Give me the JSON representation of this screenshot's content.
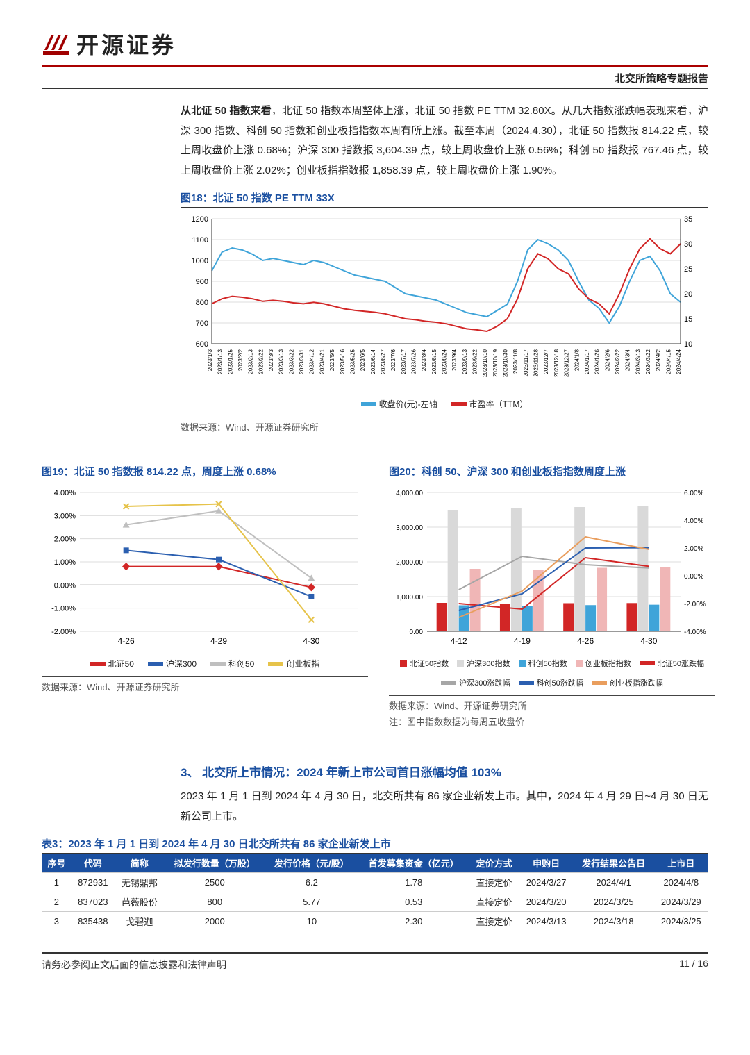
{
  "header": {
    "company": "开源证券",
    "report_title": "北交所策略专题报告"
  },
  "para1": {
    "lead": "从北证 50 指数来看",
    "text_a": "，北证 50 指数本周整体上涨，北证 50 指数 PE TTM 32.80X。",
    "uline": "从几大指数涨跌幅表现来看，沪深 300 指数、科创 50 指数和创业板指指数本周有所上涨。",
    "text_b": "截至本周（2024.4.30），北证 50 指数报 814.22 点，较上周收盘价上涨 0.68%；沪深 300 指数报 3,604.39 点，较上周收盘价上涨 0.56%；科创 50 指数报 767.46 点，较上周收盘价上涨 2.02%；创业板指指数报 1,858.39 点，较上周收盘价上涨 1.90%。"
  },
  "fig18": {
    "title": "图18：北证 50 指数 PE TTM 33X",
    "type": "line_dual_axis",
    "series": [
      {
        "name": "收盘价(元)-左轴",
        "color": "#3fa4d9",
        "axis": "left"
      },
      {
        "name": "市盈率（TTM）",
        "color": "#d22626",
        "axis": "right"
      }
    ],
    "y_left": {
      "min": 600,
      "max": 1200,
      "step": 100
    },
    "y_right": {
      "min": 10,
      "max": 35,
      "step": 5
    },
    "x_labels": [
      "2023/1/3",
      "2023/1/13",
      "2023/1/25",
      "2023/2/2",
      "2023/2/13",
      "2023/2/22",
      "2023/3/3",
      "2023/3/13",
      "2023/3/22",
      "2023/3/31",
      "2023/4/12",
      "2023/4/21",
      "2023/5/5",
      "2023/5/16",
      "2023/5/25",
      "2023/6/5",
      "2023/6/14",
      "2023/6/27",
      "2023/7/6",
      "2023/7/17",
      "2023/7/26",
      "2023/8/4",
      "2023/8/15",
      "2023/8/24",
      "2023/9/4",
      "2023/9/13",
      "2023/9/22",
      "2023/10/10",
      "2023/10/19",
      "2023/10/30",
      "2023/11/8",
      "2023/11/17",
      "2023/11/28",
      "2023/12/7",
      "2023/12/18",
      "2023/12/27",
      "2024/1/8",
      "2024/1/17",
      "2024/1/26",
      "2024/2/6",
      "2024/2/22",
      "2024/3/4",
      "2024/3/13",
      "2024/3/22",
      "2024/4/2",
      "2024/4/15",
      "2024/4/24"
    ],
    "price": [
      950,
      1040,
      1060,
      1050,
      1030,
      1000,
      1010,
      1000,
      990,
      980,
      1000,
      990,
      970,
      950,
      930,
      920,
      910,
      900,
      870,
      840,
      830,
      820,
      810,
      790,
      770,
      750,
      740,
      730,
      760,
      790,
      900,
      1050,
      1100,
      1080,
      1050,
      1000,
      900,
      810,
      770,
      700,
      780,
      900,
      1000,
      1020,
      950,
      840,
      800
    ],
    "pe": [
      18,
      19,
      19.5,
      19.3,
      19,
      18.5,
      18.7,
      18.5,
      18.2,
      18,
      18.3,
      18,
      17.5,
      17,
      16.7,
      16.5,
      16.3,
      16,
      15.5,
      15,
      14.8,
      14.5,
      14.3,
      14,
      13.5,
      13,
      12.8,
      12.5,
      13.5,
      15,
      19,
      25,
      28,
      27,
      25,
      24,
      21,
      19,
      18,
      16,
      20,
      25,
      29,
      31,
      29,
      28,
      30
    ],
    "source": "数据来源：Wind、开源证券研究所"
  },
  "fig19": {
    "title": "图19：北证 50 指数报 814.22 点，周度上涨 0.68%",
    "type": "line",
    "x": [
      "4-26",
      "4-29",
      "4-30"
    ],
    "series": [
      {
        "name": "北证50",
        "color": "#d22626",
        "marker": "diamond",
        "vals": [
          0.8,
          0.8,
          -0.1
        ]
      },
      {
        "name": "沪深300",
        "color": "#2b5fb0",
        "marker": "square",
        "vals": [
          1.5,
          1.1,
          -0.5
        ]
      },
      {
        "name": "科创50",
        "color": "#bfbfbf",
        "marker": "triangle",
        "vals": [
          2.6,
          3.2,
          0.3
        ]
      },
      {
        "name": "创业板指",
        "color": "#e6c34a",
        "marker": "x",
        "vals": [
          3.4,
          3.5,
          -1.5
        ]
      }
    ],
    "y": {
      "min": -2.0,
      "max": 4.0,
      "step": 1.0,
      "fmt": "percent"
    },
    "source": "数据来源：Wind、开源证券研究所"
  },
  "fig20": {
    "title": "图20：科创 50、沪深 300 和创业板指指数周度上涨",
    "type": "bar_line_dual",
    "x": [
      "4-12",
      "4-19",
      "4-26",
      "4-30"
    ],
    "bars": [
      {
        "name": "北证50指数",
        "color": "#d22626",
        "vals": [
          820,
          800,
          810,
          814
        ]
      },
      {
        "name": "沪深300指数",
        "color": "#d9d9d9",
        "vals": [
          3500,
          3550,
          3580,
          3604
        ]
      },
      {
        "name": "科创50指数",
        "color": "#3fa4d9",
        "vals": [
          750,
          740,
          755,
          767
        ]
      },
      {
        "name": "创业板指指数",
        "color": "#f0b6b6",
        "vals": [
          1800,
          1780,
          1830,
          1858
        ]
      }
    ],
    "lines": [
      {
        "name": "北证50涨跌幅",
        "color": "#d22626",
        "vals": [
          -2.0,
          -2.4,
          1.3,
          0.68
        ]
      },
      {
        "name": "沪深300涨跌幅",
        "color": "#a6a6a6",
        "vals": [
          -1.0,
          1.4,
          0.8,
          0.56
        ]
      },
      {
        "name": "科创50涨跌幅",
        "color": "#2b5fb0",
        "vals": [
          -2.5,
          -1.3,
          2.0,
          2.02
        ]
      },
      {
        "name": "创业板指涨跌幅",
        "color": "#e99e5e",
        "vals": [
          -3.0,
          -1.1,
          2.8,
          1.9
        ]
      }
    ],
    "y_left": {
      "min": 0,
      "max": 4000,
      "step": 1000
    },
    "y_right": {
      "min": -4.0,
      "max": 6.0,
      "step": 2.0,
      "fmt": "percent"
    },
    "source": "数据来源：Wind、开源证券研究所",
    "note": "注：图中指数数据为每周五收盘价"
  },
  "section3": {
    "title": "3、 北交所上市情况：2024 年新上市公司首日涨幅均值 103%",
    "para": "2023 年 1 月 1 日到 2024 年 4 月 30 日，北交所共有 86 家企业新发上市。其中，2024 年 4 月 29 日~4 月 30 日无新公司上市。"
  },
  "table3": {
    "title": "表3：2023 年 1 月 1 日到 2024 年 4 月 30 日北交所共有 86 家企业新发上市",
    "columns": [
      "序号",
      "代码",
      "简称",
      "拟发行数量（万股）",
      "发行价格（元/股）",
      "首发募集资金（亿元）",
      "定价方式",
      "申购日",
      "发行结果公告日",
      "上市日"
    ],
    "rows": [
      [
        "1",
        "872931",
        "无锡鼎邦",
        "2500",
        "6.2",
        "1.78",
        "直接定价",
        "2024/3/27",
        "2024/4/1",
        "2024/4/8"
      ],
      [
        "2",
        "837023",
        "芭薇股份",
        "800",
        "5.77",
        "0.53",
        "直接定价",
        "2024/3/20",
        "2024/3/25",
        "2024/3/29"
      ],
      [
        "3",
        "835438",
        "戈碧迦",
        "2000",
        "10",
        "2.30",
        "直接定价",
        "2024/3/13",
        "2024/3/18",
        "2024/3/25"
      ]
    ]
  },
  "footer": {
    "disclaimer": "请务必参阅正文后面的信息披露和法律声明",
    "page": "11 / 16"
  },
  "colors": {
    "brand_red": "#a00000",
    "title_blue": "#1a4fa0",
    "table_head": "#1a4fa0"
  }
}
